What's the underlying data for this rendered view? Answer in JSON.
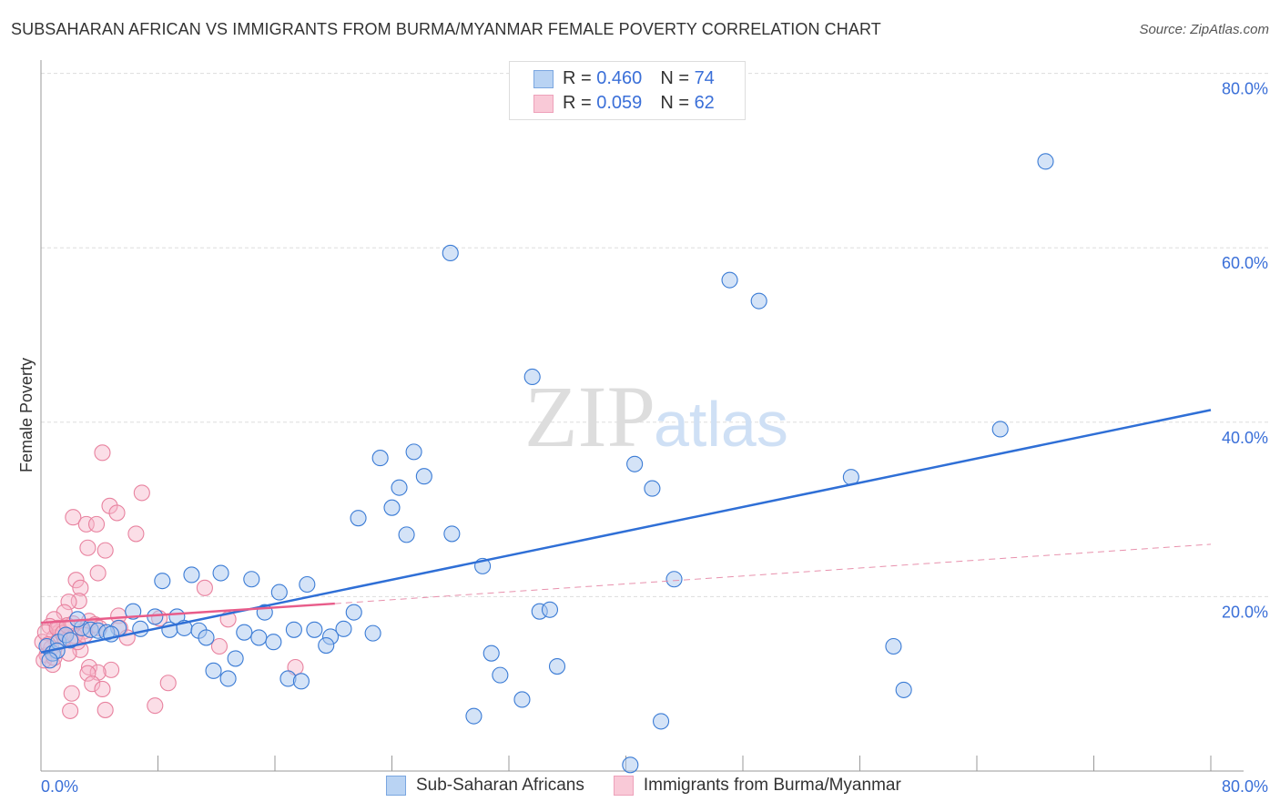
{
  "title": "SUBSAHARAN AFRICAN VS IMMIGRANTS FROM BURMA/MYANMAR FEMALE POVERTY CORRELATION CHART",
  "source": "Source: ZipAtlas.com",
  "watermark": "ZIPatlas",
  "colors": {
    "blue": "#3a7bd5",
    "blue_fill": "#a9c8f0",
    "pink": "#e86a92",
    "pink_fill": "#f6b6c9",
    "axis_label": "#3a6fd8"
  },
  "legend": {
    "r_label": "R =",
    "n_label": "N =",
    "blue": {
      "r": "0.460",
      "n": "74"
    },
    "pink": {
      "r": "0.059",
      "n": "62"
    }
  },
  "chart_data": {
    "type": "scatter",
    "title": "SUBSAHARAN AFRICAN VS IMMIGRANTS FROM BURMA/MYANMAR FEMALE POVERTY CORRELATION CHART",
    "xlabel": "",
    "ylabel": "Female Poverty",
    "xlim": [
      0,
      80
    ],
    "ylim": [
      0,
      84
    ],
    "x_tick_labels": [
      "0.0%",
      "80.0%"
    ],
    "y_ticks": [
      20,
      40,
      60,
      80
    ],
    "y_tick_labels": [
      "20.0%",
      "40.0%",
      "60.0%",
      "80.0%"
    ],
    "grid": true,
    "legend_position": "top-center",
    "series": [
      {
        "name": "Sub-Saharan Africans",
        "color": "#3a7bd5",
        "trend": {
          "x": [
            0,
            80
          ],
          "y": [
            13.6,
            41.4
          ]
        },
        "points": [
          [
            68.7,
            69.9
          ],
          [
            28.0,
            59.4
          ],
          [
            47.1,
            56.3
          ],
          [
            49.1,
            53.9
          ],
          [
            33.6,
            45.2
          ],
          [
            65.6,
            39.2
          ],
          [
            23.2,
            35.9
          ],
          [
            25.5,
            36.6
          ],
          [
            40.6,
            35.2
          ],
          [
            26.2,
            33.8
          ],
          [
            24.5,
            32.5
          ],
          [
            41.8,
            32.4
          ],
          [
            55.4,
            33.7
          ],
          [
            24.0,
            30.2
          ],
          [
            21.7,
            29.0
          ],
          [
            25.0,
            27.1
          ],
          [
            28.1,
            27.2
          ],
          [
            30.2,
            23.5
          ],
          [
            43.3,
            22.0
          ],
          [
            8.3,
            21.8
          ],
          [
            10.3,
            22.5
          ],
          [
            12.3,
            22.7
          ],
          [
            14.4,
            22.0
          ],
          [
            16.3,
            20.5
          ],
          [
            18.2,
            21.4
          ],
          [
            15.3,
            18.2
          ],
          [
            21.4,
            18.2
          ],
          [
            34.1,
            18.3
          ],
          [
            34.8,
            18.5
          ],
          [
            6.3,
            18.3
          ],
          [
            7.8,
            17.7
          ],
          [
            9.3,
            17.7
          ],
          [
            5.3,
            16.4
          ],
          [
            6.8,
            16.3
          ],
          [
            8.8,
            16.2
          ],
          [
            9.8,
            16.4
          ],
          [
            10.8,
            16.1
          ],
          [
            11.3,
            15.3
          ],
          [
            13.9,
            15.9
          ],
          [
            14.9,
            15.3
          ],
          [
            15.9,
            14.8
          ],
          [
            17.3,
            16.2
          ],
          [
            18.7,
            16.2
          ],
          [
            19.8,
            15.4
          ],
          [
            20.7,
            16.3
          ],
          [
            22.7,
            15.8
          ],
          [
            19.5,
            14.4
          ],
          [
            13.3,
            12.9
          ],
          [
            11.8,
            11.5
          ],
          [
            12.8,
            10.6
          ],
          [
            16.9,
            10.6
          ],
          [
            17.8,
            10.3
          ],
          [
            30.8,
            13.5
          ],
          [
            31.4,
            11.0
          ],
          [
            35.3,
            12.0
          ],
          [
            32.9,
            8.2
          ],
          [
            29.6,
            6.3
          ],
          [
            42.4,
            5.7
          ],
          [
            40.3,
            0.7
          ],
          [
            58.3,
            14.3
          ],
          [
            59.0,
            9.3
          ],
          [
            0.4,
            14.3
          ],
          [
            0.8,
            13.5
          ],
          [
            1.2,
            14.8
          ],
          [
            1.7,
            15.6
          ],
          [
            2.8,
            16.4
          ],
          [
            3.4,
            16.2
          ],
          [
            3.9,
            16.1
          ],
          [
            4.5,
            15.9
          ],
          [
            4.8,
            15.7
          ],
          [
            1.1,
            13.8
          ],
          [
            2.5,
            17.4
          ],
          [
            0.6,
            12.7
          ],
          [
            2.0,
            15.0
          ]
        ]
      },
      {
        "name": "Immigrants from Burma/Myanmar",
        "color": "#e86a92",
        "trend": {
          "x": [
            0,
            20.1,
            80
          ],
          "y": [
            17.0,
            19.2,
            26.0
          ],
          "solid_until": 20.1
        },
        "points": [
          [
            4.2,
            36.5
          ],
          [
            6.9,
            31.9
          ],
          [
            2.2,
            29.1
          ],
          [
            4.7,
            30.4
          ],
          [
            5.2,
            29.6
          ],
          [
            3.1,
            28.3
          ],
          [
            3.8,
            28.3
          ],
          [
            6.5,
            27.2
          ],
          [
            3.2,
            25.6
          ],
          [
            4.4,
            25.3
          ],
          [
            3.9,
            22.7
          ],
          [
            2.4,
            21.9
          ],
          [
            2.7,
            21.0
          ],
          [
            11.2,
            21.0
          ],
          [
            2.6,
            19.5
          ],
          [
            1.9,
            19.4
          ],
          [
            1.6,
            18.2
          ],
          [
            5.3,
            17.8
          ],
          [
            8.1,
            17.5
          ],
          [
            12.8,
            17.4
          ],
          [
            0.9,
            17.4
          ],
          [
            0.6,
            16.6
          ],
          [
            2.2,
            16.9
          ],
          [
            3.3,
            17.2
          ],
          [
            3.7,
            16.8
          ],
          [
            5.4,
            16.4
          ],
          [
            1.3,
            16.0
          ],
          [
            2.9,
            16.0
          ],
          [
            0.9,
            15.3
          ],
          [
            0.1,
            14.8
          ],
          [
            12.2,
            14.3
          ],
          [
            2.7,
            13.9
          ],
          [
            1.9,
            13.5
          ],
          [
            0.4,
            13.3
          ],
          [
            0.8,
            12.2
          ],
          [
            0.2,
            12.7
          ],
          [
            17.4,
            11.9
          ],
          [
            3.3,
            11.9
          ],
          [
            4.8,
            11.6
          ],
          [
            3.9,
            11.3
          ],
          [
            3.2,
            11.2
          ],
          [
            3.5,
            10.0
          ],
          [
            8.7,
            10.1
          ],
          [
            4.2,
            9.4
          ],
          [
            2.1,
            8.9
          ],
          [
            7.8,
            7.5
          ],
          [
            2.0,
            6.9
          ],
          [
            4.4,
            7.0
          ],
          [
            1.6,
            15.3
          ],
          [
            2.5,
            14.8
          ],
          [
            1.2,
            16.4
          ],
          [
            0.3,
            15.9
          ],
          [
            4.0,
            16.4
          ],
          [
            5.9,
            15.3
          ],
          [
            0.7,
            14.1
          ],
          [
            1.1,
            16.4
          ],
          [
            1.5,
            15.8
          ],
          [
            0.5,
            14.5
          ],
          [
            2.3,
            15.5
          ],
          [
            1.8,
            16.7
          ],
          [
            0.9,
            13.0
          ],
          [
            3.0,
            15.6
          ]
        ]
      }
    ]
  }
}
